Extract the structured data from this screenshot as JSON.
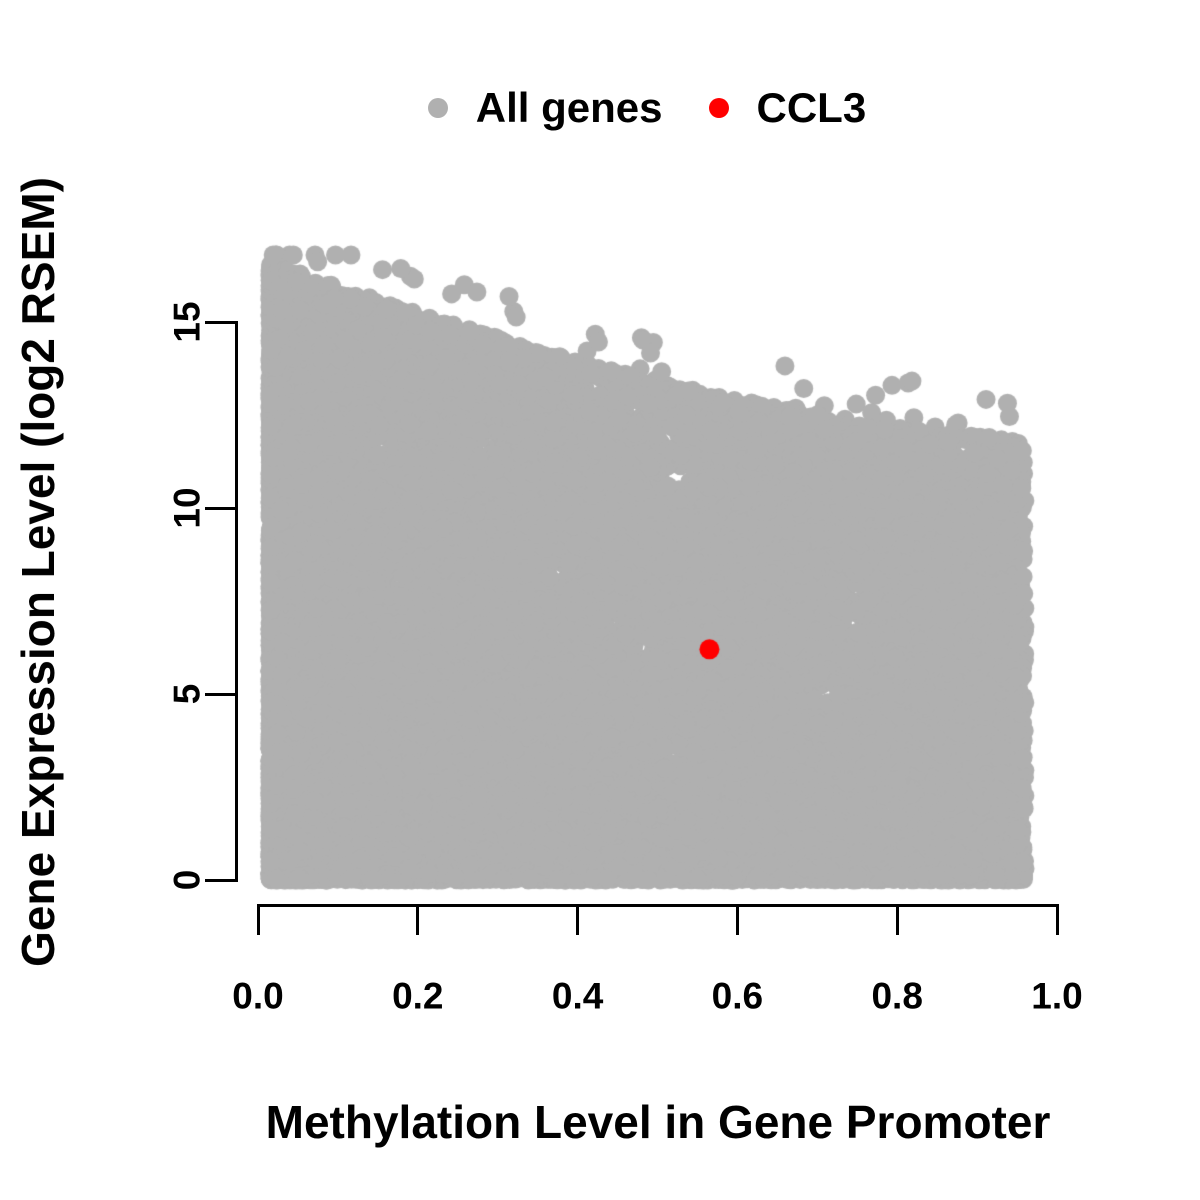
{
  "figure": {
    "background_color": "#ffffff",
    "text_color": "#000000"
  },
  "chart_data": {
    "type": "scatter",
    "title": "",
    "xlabel": "Methylation Level in Gene Promoter",
    "ylabel": "Gene Expression Level (log2 RSEM)",
    "x_tick_labels": [
      "0.0",
      "0.2",
      "0.4",
      "0.6",
      "0.8",
      "1.0"
    ],
    "x_tick_values": [
      0.0,
      0.2,
      0.4,
      0.6,
      0.8,
      1.0
    ],
    "y_tick_labels": [
      "0",
      "5",
      "10",
      "15"
    ],
    "y_tick_values": [
      0,
      5,
      10,
      15
    ],
    "x_range": [
      0.0,
      1.0
    ],
    "y_range": [
      0,
      16.8
    ],
    "grid": false,
    "legend_position": "top-center",
    "series": [
      {
        "name": "All genes",
        "color": "#b0b0b0",
        "marker": "filled-circle",
        "marker_radius_px": 9.5,
        "cloud_summary": {
          "n_points_approx": 16000,
          "x_min": 0.015,
          "x_max": 0.96,
          "y_min": 0,
          "y_max": 16.7,
          "upper_envelope": "y_max ≈ 11.8 + 4.9·(1−x)^1.6 (≈16.7 at x=0, ≈13.4 at x=0.5, ≈11.9 at x=0.95)",
          "density": "very dense at low methylation filling 0–16.5; density and maximum expression decline as methylation rises; solid band of points at expression ≈ 0 across all methylation levels"
        },
        "generator": {
          "seed": 20240817,
          "n": 16000,
          "x_min": 0.015,
          "x_span": 0.945,
          "x_skew_frac": 0.55,
          "x_skew_pow": 2.1,
          "env_base": 11.8,
          "env_amp": 4.9,
          "env_pow": 1.6,
          "y_pow": 1.25,
          "zero_frac": 0.06,
          "zero_band": 0.18,
          "outlier_frac": 0.003,
          "outlier_max_extra": 1.3,
          "y_cap": 16.8
        }
      },
      {
        "name": "CCL3",
        "color": "#ff0000",
        "marker": "filled-circle",
        "marker_radius_px": 10,
        "points": [
          [
            0.565,
            6.2
          ]
        ]
      }
    ]
  }
}
